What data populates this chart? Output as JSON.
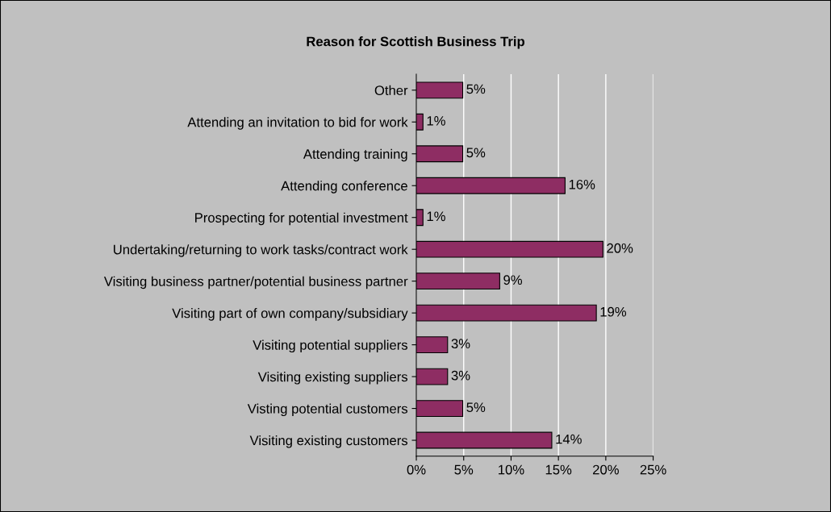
{
  "chart_data": {
    "type": "bar",
    "orientation": "horizontal",
    "title": "Reason for Scottish Business Trip",
    "categories": [
      "Other",
      "Attending an invitation to bid for work",
      "Attending training",
      "Attending conference",
      "Prospecting for potential investment",
      "Undertaking/returning to work tasks/contract work",
      "Visiting business partner/potential business partner",
      "Visiting part of own company/subsidiary",
      "Visiting potential suppliers",
      "Visiting existing suppliers",
      "Visting potential customers",
      "Visiting existing customers"
    ],
    "values": [
      4.9,
      0.7,
      4.9,
      15.7,
      0.7,
      19.7,
      8.8,
      19.0,
      3.3,
      3.3,
      4.9,
      14.3
    ],
    "value_labels": [
      "5%",
      "1%",
      "5%",
      "16%",
      "1%",
      "20%",
      "9%",
      "19%",
      "3%",
      "3%",
      "5%",
      "14%"
    ],
    "color": "#8e2d63",
    "xlim": [
      0,
      25
    ],
    "xticks": [
      {
        "value": 0,
        "label": "0%"
      },
      {
        "value": 5,
        "label": "5%"
      },
      {
        "value": 10,
        "label": "10%"
      },
      {
        "value": 15,
        "label": "15%"
      },
      {
        "value": 20,
        "label": "20%"
      },
      {
        "value": 25,
        "label": "25%"
      }
    ],
    "grid": "x"
  }
}
